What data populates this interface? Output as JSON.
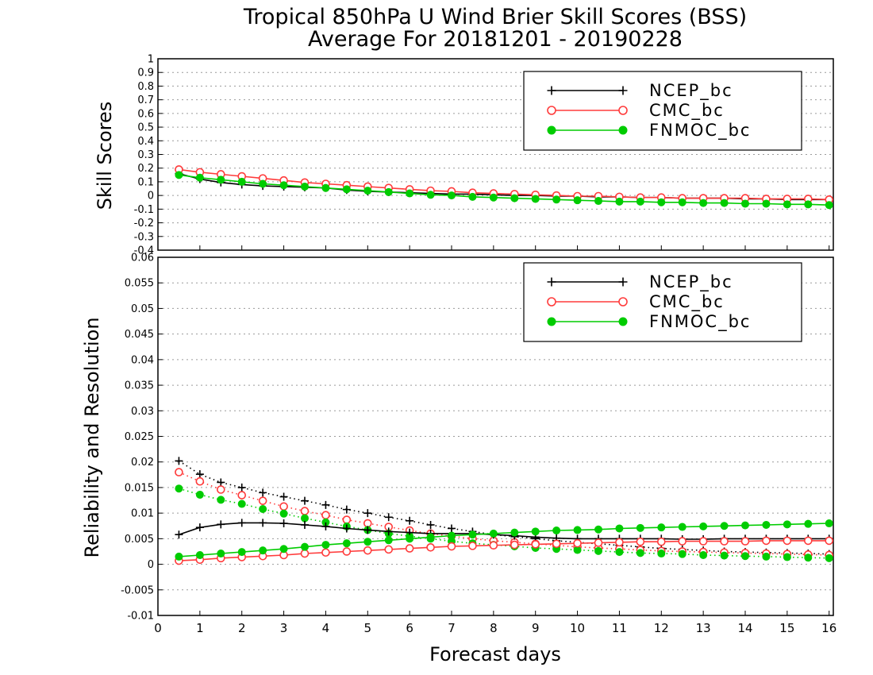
{
  "chart_data": [
    {
      "type": "line",
      "title": "Tropical 850hPa U Wind Brier Skill Scores (BSS)",
      "subtitle": "Average For 20181201 - 20190228",
      "xlabel": "Forecast days",
      "ylabel": "Skill Scores",
      "xlim": [
        0,
        16.1
      ],
      "ylim": [
        -0.4,
        1
      ],
      "xticks": [
        "0",
        "1",
        "2",
        "3",
        "4",
        "5",
        "6",
        "7",
        "8",
        "9",
        "10",
        "11",
        "12",
        "13",
        "14",
        "15",
        "16"
      ],
      "yticks": [
        "-0.4",
        "-0.3",
        "-0.2",
        "-0.1",
        "0",
        "0.1",
        "0.2",
        "0.3",
        "0.4",
        "0.5",
        "0.6",
        "0.7",
        "0.8",
        "0.9",
        "1"
      ],
      "grid": true,
      "legend_position": "top-right",
      "x": [
        0.5,
        1,
        1.5,
        2,
        2.5,
        3,
        3.5,
        4,
        4.5,
        5,
        5.5,
        6,
        6.5,
        7,
        7.5,
        8,
        8.5,
        9,
        9.5,
        10,
        10.5,
        11,
        11.5,
        12,
        12.5,
        13,
        13.5,
        14,
        14.5,
        15,
        15.5,
        16
      ],
      "series": [
        {
          "name": "NCEP_bc",
          "color": "#000000",
          "marker": "plus",
          "line": "solid",
          "values": [
            0.16,
            0.12,
            0.095,
            0.08,
            0.07,
            0.065,
            0.06,
            0.055,
            0.04,
            0.03,
            0.025,
            0.02,
            0.015,
            0.01,
            0.01,
            0.005,
            0.0,
            0.0,
            -0.005,
            -0.005,
            -0.01,
            -0.01,
            -0.015,
            -0.015,
            -0.02,
            -0.02,
            -0.02,
            -0.025,
            -0.025,
            -0.03,
            -0.03,
            -0.03
          ]
        },
        {
          "name": "CMC_bc",
          "color": "#ff3b3b",
          "marker": "open-circle",
          "line": "solid",
          "values": [
            0.19,
            0.17,
            0.155,
            0.14,
            0.125,
            0.11,
            0.095,
            0.085,
            0.075,
            0.065,
            0.055,
            0.045,
            0.035,
            0.03,
            0.02,
            0.015,
            0.01,
            0.005,
            0.0,
            -0.005,
            -0.005,
            -0.01,
            -0.015,
            -0.015,
            -0.02,
            -0.02,
            -0.02,
            -0.02,
            -0.025,
            -0.025,
            -0.025,
            -0.03
          ]
        },
        {
          "name": "FNMOC_bc",
          "color": "#00cc00",
          "marker": "filled-circle",
          "line": "solid",
          "values": [
            0.15,
            0.13,
            0.115,
            0.1,
            0.085,
            0.075,
            0.065,
            0.055,
            0.045,
            0.035,
            0.025,
            0.015,
            0.005,
            0.0,
            -0.01,
            -0.015,
            -0.02,
            -0.025,
            -0.03,
            -0.035,
            -0.04,
            -0.045,
            -0.045,
            -0.05,
            -0.05,
            -0.055,
            -0.055,
            -0.06,
            -0.06,
            -0.065,
            -0.065,
            -0.07
          ]
        }
      ]
    },
    {
      "type": "line",
      "title": "",
      "xlabel": "Forecast days",
      "ylabel": "Reliability and Resolution",
      "xlim": [
        0,
        16.1
      ],
      "ylim": [
        -0.01,
        0.06
      ],
      "xticks": [
        "0",
        "1",
        "2",
        "3",
        "4",
        "5",
        "6",
        "7",
        "8",
        "9",
        "10",
        "11",
        "12",
        "13",
        "14",
        "15",
        "16"
      ],
      "yticks": [
        "-0.01",
        "-0.005",
        "0",
        "0.005",
        "0.01",
        "0.015",
        "0.02",
        "0.025",
        "0.03",
        "0.035",
        "0.04",
        "0.045",
        "0.05",
        "0.055",
        "0.06"
      ],
      "grid": true,
      "legend_position": "top-right",
      "x": [
        0.5,
        1,
        1.5,
        2,
        2.5,
        3,
        3.5,
        4,
        4.5,
        5,
        5.5,
        6,
        6.5,
        7,
        7.5,
        8,
        8.5,
        9,
        9.5,
        10,
        10.5,
        11,
        11.5,
        12,
        12.5,
        13,
        13.5,
        14,
        14.5,
        15,
        15.5,
        16
      ],
      "series": [
        {
          "name": "NCEP_bc",
          "color": "#000000",
          "marker": "plus",
          "line": "dotted",
          "values": [
            0.0202,
            0.0176,
            0.016,
            0.015,
            0.014,
            0.0132,
            0.0124,
            0.0116,
            0.0107,
            0.01,
            0.0092,
            0.0085,
            0.0077,
            0.007,
            0.0064,
            0.0058,
            0.0054,
            0.005,
            0.0046,
            0.0043,
            0.004,
            0.0037,
            0.0034,
            0.0031,
            0.0029,
            0.0027,
            0.0025,
            0.0024,
            0.0023,
            0.0022,
            0.0021,
            0.002
          ]
        },
        {
          "name": "CMC_bc",
          "color": "#ff3b3b",
          "marker": "open-circle",
          "line": "dotted",
          "values": [
            0.018,
            0.0162,
            0.0146,
            0.0135,
            0.0124,
            0.0113,
            0.0104,
            0.0096,
            0.0087,
            0.008,
            0.0073,
            0.0066,
            0.006,
            0.0055,
            0.005,
            0.0046,
            0.0043,
            0.004,
            0.0037,
            0.0034,
            0.0032,
            0.003,
            0.0028,
            0.0026,
            0.0025,
            0.0024,
            0.0023,
            0.0022,
            0.0021,
            0.002,
            0.0019,
            0.0018
          ]
        },
        {
          "name": "FNMOC_bc",
          "color": "#00cc00",
          "marker": "filled-circle",
          "line": "dotted",
          "values": [
            0.0148,
            0.0136,
            0.0126,
            0.0118,
            0.0108,
            0.0099,
            0.009,
            0.0082,
            0.0074,
            0.0067,
            0.006,
            0.0055,
            0.005,
            0.0045,
            0.0041,
            0.0038,
            0.0035,
            0.0032,
            0.003,
            0.0028,
            0.0026,
            0.0024,
            0.0022,
            0.0021,
            0.002,
            0.0018,
            0.0017,
            0.0016,
            0.0015,
            0.0014,
            0.0013,
            0.0012
          ]
        },
        {
          "name": "NCEP_bc",
          "color": "#000000",
          "marker": "plus",
          "line": "solid",
          "values": [
            0.0058,
            0.0072,
            0.0078,
            0.0081,
            0.0081,
            0.008,
            0.0077,
            0.0074,
            0.007,
            0.0067,
            0.0064,
            0.0062,
            0.006,
            0.006,
            0.006,
            0.0058,
            0.0056,
            0.0053,
            0.0051,
            0.005,
            0.005,
            0.005,
            0.005,
            0.005,
            0.0049,
            0.0049,
            0.005,
            0.005,
            0.005,
            0.005,
            0.005,
            0.005
          ]
        },
        {
          "name": "CMC_bc",
          "color": "#ff3b3b",
          "marker": "open-circle",
          "line": "solid",
          "values": [
            0.0007,
            0.0009,
            0.0012,
            0.0014,
            0.0016,
            0.0018,
            0.0021,
            0.0023,
            0.0025,
            0.0027,
            0.0029,
            0.0031,
            0.0033,
            0.0035,
            0.0036,
            0.0037,
            0.0038,
            0.0039,
            0.004,
            0.0041,
            0.0042,
            0.0043,
            0.0044,
            0.0044,
            0.0045,
            0.0045,
            0.0045,
            0.0045,
            0.0046,
            0.0046,
            0.0046,
            0.0046
          ]
        },
        {
          "name": "FNMOC_bc",
          "color": "#00cc00",
          "marker": "filled-circle",
          "line": "solid",
          "values": [
            0.0015,
            0.0018,
            0.0021,
            0.0024,
            0.0027,
            0.003,
            0.0034,
            0.0038,
            0.0041,
            0.0044,
            0.0047,
            0.005,
            0.0053,
            0.0056,
            0.0058,
            0.006,
            0.0062,
            0.0064,
            0.0066,
            0.0067,
            0.0068,
            0.007,
            0.0071,
            0.0072,
            0.0073,
            0.0074,
            0.0075,
            0.0076,
            0.0077,
            0.0078,
            0.0079,
            0.008
          ]
        }
      ]
    }
  ]
}
